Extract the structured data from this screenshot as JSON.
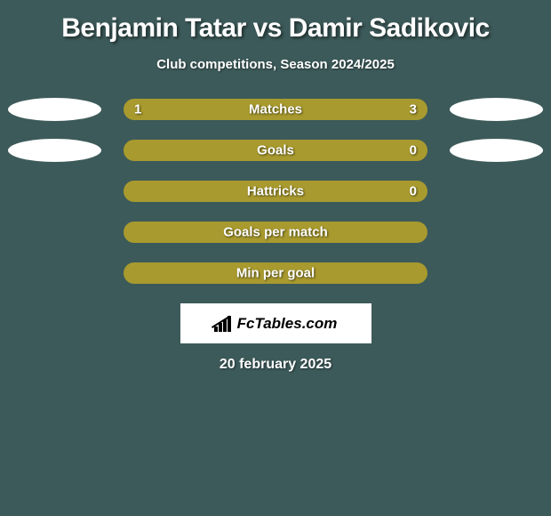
{
  "title": "Benjamin Tatar vs Damir Sadikovic",
  "subtitle": "Club competitions, Season 2024/2025",
  "background_color": "#3d5a5a",
  "bar_color_left": "#a89a2e",
  "bar_color_right": "#a89a2e",
  "bar_color_full": "#a89a2e",
  "ellipse_color": "#ffffff",
  "text_color": "#ffffff",
  "rows": [
    {
      "label": "Matches",
      "left_val": "1",
      "right_val": "3",
      "left_pct": 25,
      "right_pct": 75,
      "show_left_ellipse": true,
      "show_right_ellipse": true
    },
    {
      "label": "Goals",
      "left_val": "",
      "right_val": "0",
      "left_pct": 100,
      "right_pct": 0,
      "show_left_ellipse": true,
      "show_right_ellipse": true
    },
    {
      "label": "Hattricks",
      "left_val": "",
      "right_val": "0",
      "left_pct": 100,
      "right_pct": 0,
      "show_left_ellipse": false,
      "show_right_ellipse": false
    },
    {
      "label": "Goals per match",
      "left_val": "",
      "right_val": "",
      "left_pct": 100,
      "right_pct": 0,
      "show_left_ellipse": false,
      "show_right_ellipse": false
    },
    {
      "label": "Min per goal",
      "left_val": "",
      "right_val": "",
      "left_pct": 100,
      "right_pct": 0,
      "show_left_ellipse": false,
      "show_right_ellipse": false
    }
  ],
  "logo_text": "FcTables.com",
  "date": "20 february 2025"
}
